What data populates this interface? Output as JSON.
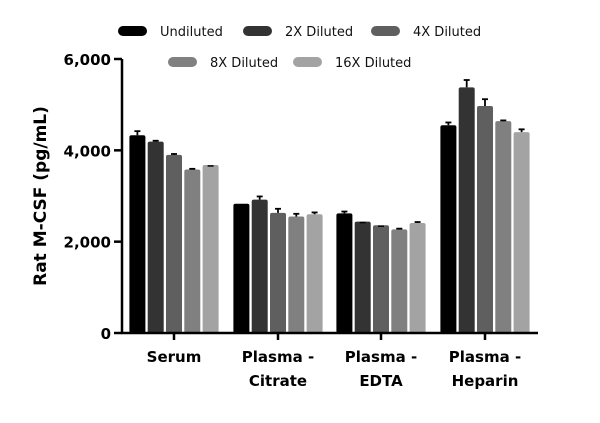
{
  "chart_data": {
    "type": "bar",
    "title": "",
    "xlabel": "",
    "ylabel": "Rat M-CSF (pg/mL)",
    "ylim": [
      0,
      6000
    ],
    "yticks": [
      0,
      2000,
      4000,
      6000
    ],
    "ytick_labels": [
      "0",
      "2,000",
      "4,000",
      "6,000"
    ],
    "categories": [
      [
        "Serum"
      ],
      [
        "Plasma -",
        "Citrate"
      ],
      [
        "Plasma -",
        "EDTA"
      ],
      [
        "Plasma -",
        "Heparin"
      ]
    ],
    "legend_position": "top",
    "series": [
      {
        "name": "Undiluted",
        "color": "#000000",
        "values": [
          4330,
          2830,
          2620,
          4550
        ],
        "errors": [
          90,
          0,
          40,
          60
        ]
      },
      {
        "name": "2X Diluted",
        "color": "#333333",
        "values": [
          4190,
          2920,
          2440,
          5380
        ],
        "errors": [
          20,
          70,
          0,
          160
        ]
      },
      {
        "name": "4X Diluted",
        "color": "#5f5f5f",
        "values": [
          3900,
          2630,
          2360,
          4970
        ],
        "errors": [
          20,
          90,
          0,
          150
        ]
      },
      {
        "name": "8X Diluted",
        "color": "#808080",
        "values": [
          3580,
          2550,
          2270,
          4640
        ],
        "errors": [
          15,
          60,
          15,
          15
        ]
      },
      {
        "name": "16X Diluted",
        "color": "#a3a3a3",
        "values": [
          3680,
          2600,
          2410,
          4400
        ],
        "errors": [
          0,
          40,
          20,
          60
        ]
      }
    ]
  }
}
